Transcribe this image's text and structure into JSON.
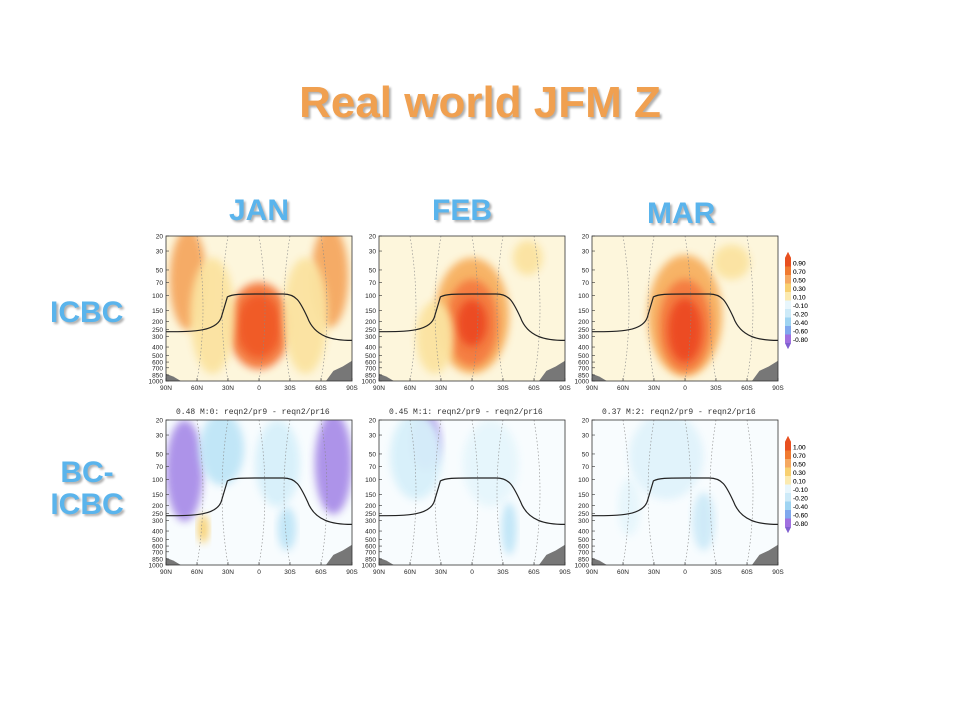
{
  "title": "Real world JFM Z",
  "columns": [
    "JAN",
    "FEB",
    "MAR"
  ],
  "rows": [
    {
      "label_lines": [
        "ICBC"
      ]
    },
    {
      "label_lines": [
        "BC-",
        "ICBC"
      ]
    }
  ],
  "chart_data": [
    {
      "type": "heatmap",
      "row": "ICBC",
      "column": "JAN",
      "subtitle": "",
      "x_ticks": [
        "90N",
        "60N",
        "30N",
        "0",
        "30S",
        "60S",
        "90S"
      ],
      "y_ticks": [
        "20",
        "30",
        "50",
        "70",
        "100",
        "150",
        "200",
        "250",
        "300",
        "400",
        "500",
        "600",
        "700",
        "850",
        "1000"
      ],
      "colorbar": [
        "0.90",
        "0.70",
        "0.50",
        "0.30",
        "0.10",
        "-0.10",
        "-0.20",
        "-0.40",
        "-0.60",
        "-0.80"
      ]
    },
    {
      "type": "heatmap",
      "row": "ICBC",
      "column": "FEB",
      "subtitle": "",
      "x_ticks": [
        "90N",
        "60N",
        "30N",
        "0",
        "30S",
        "60S",
        "90S"
      ],
      "y_ticks": [
        "20",
        "30",
        "50",
        "70",
        "100",
        "150",
        "200",
        "250",
        "300",
        "400",
        "500",
        "600",
        "700",
        "850",
        "1000"
      ]
    },
    {
      "type": "heatmap",
      "row": "ICBC",
      "column": "MAR",
      "subtitle": "",
      "x_ticks": [
        "90N",
        "60N",
        "30N",
        "0",
        "30S",
        "60S",
        "90S"
      ],
      "y_ticks": [
        "20",
        "30",
        "50",
        "70",
        "100",
        "150",
        "200",
        "250",
        "300",
        "400",
        "500",
        "600",
        "700",
        "850",
        "1000"
      ]
    },
    {
      "type": "heatmap",
      "row": "BC-ICBC",
      "column": "JAN",
      "subtitle": "0.48 M:0: reqn2/pr9 - reqn2/pr16",
      "x_ticks": [
        "90N",
        "60N",
        "30N",
        "0",
        "30S",
        "60S",
        "90S"
      ],
      "y_ticks": [
        "20",
        "30",
        "50",
        "70",
        "100",
        "150",
        "200",
        "250",
        "300",
        "400",
        "500",
        "600",
        "700",
        "850",
        "1000"
      ],
      "colorbar": [
        "1.00",
        "0.70",
        "0.50",
        "0.30",
        "0.10",
        "-0.10",
        "-0.20",
        "-0.40",
        "-0.60",
        "-0.80"
      ]
    },
    {
      "type": "heatmap",
      "row": "BC-ICBC",
      "column": "FEB",
      "subtitle": "0.45 M:1: reqn2/pr9 - reqn2/pr16",
      "x_ticks": [
        "90N",
        "60N",
        "30N",
        "0",
        "30S",
        "60S",
        "90S"
      ],
      "y_ticks": [
        "20",
        "30",
        "50",
        "70",
        "100",
        "150",
        "200",
        "250",
        "300",
        "400",
        "500",
        "600",
        "700",
        "850",
        "1000"
      ]
    },
    {
      "type": "heatmap",
      "row": "BC-ICBC",
      "column": "MAR",
      "subtitle": "0.37 M:2: reqn2/pr9 - reqn2/pr16",
      "x_ticks": [
        "90N",
        "60N",
        "30N",
        "0",
        "30S",
        "60S",
        "90S"
      ],
      "y_ticks": [
        "20",
        "30",
        "50",
        "70",
        "100",
        "150",
        "200",
        "250",
        "300",
        "400",
        "500",
        "600",
        "700",
        "850",
        "1000"
      ]
    }
  ],
  "colors": {
    "title": "#f0a050",
    "labels": "#5ab4ec"
  }
}
